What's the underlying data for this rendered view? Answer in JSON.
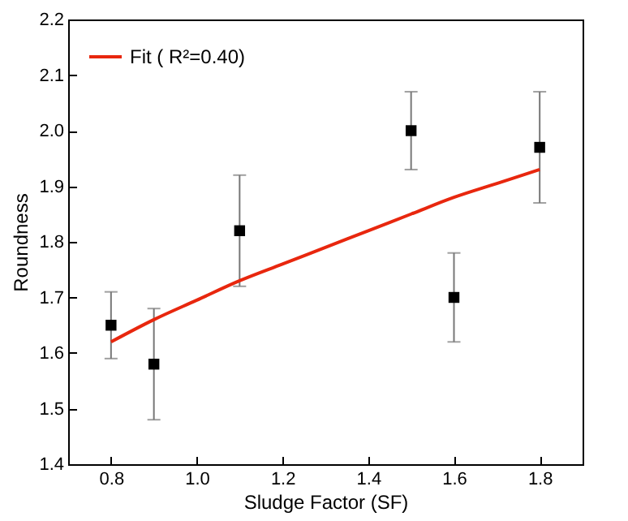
{
  "chart_data": {
    "type": "scatter",
    "xlabel": "Sludge Factor (SF)",
    "ylabel": "Roundness",
    "xlim": [
      0.7,
      1.9
    ],
    "xticks": [
      0.8,
      {
        "value": 1,
        "label": "1.0"
      },
      1.2,
      1.4,
      1.6,
      1.8
    ],
    "ylim": [
      1.4,
      2.2
    ],
    "yticks": [
      1.4,
      1.5,
      1.6,
      1.7,
      1.8,
      1.9,
      {
        "value": 2,
        "label": "2.0"
      },
      2.1,
      2.2
    ],
    "grid": false,
    "legend": "top left",
    "series": [
      {
        "color": "#000000",
        "marker": "square",
        "x": [
          0.8,
          0.9,
          1.1,
          1.5,
          1.6,
          1.8
        ],
        "values": [
          1.65,
          1.58,
          1.82,
          2.0,
          1.7,
          1.97
        ],
        "errors": [
          [
            1.59,
            1.71
          ],
          [
            1.48,
            1.68
          ],
          [
            1.72,
            1.92
          ],
          [
            1.93,
            2.07
          ],
          [
            1.62,
            1.78
          ],
          [
            1.87,
            2.07
          ]
        ]
      },
      {
        "type": "line",
        "name": "Fit ( R²=0.40)",
        "color": "#e8270e",
        "x": [
          0.8,
          0.9,
          1.0,
          1.1,
          1.2,
          1.3,
          1.4,
          1.5,
          1.6,
          1.7,
          1.8
        ],
        "values": [
          1.62,
          1.66,
          1.695,
          1.73,
          1.76,
          1.79,
          1.82,
          1.85,
          1.88,
          1.905,
          1.93
        ]
      }
    ]
  }
}
